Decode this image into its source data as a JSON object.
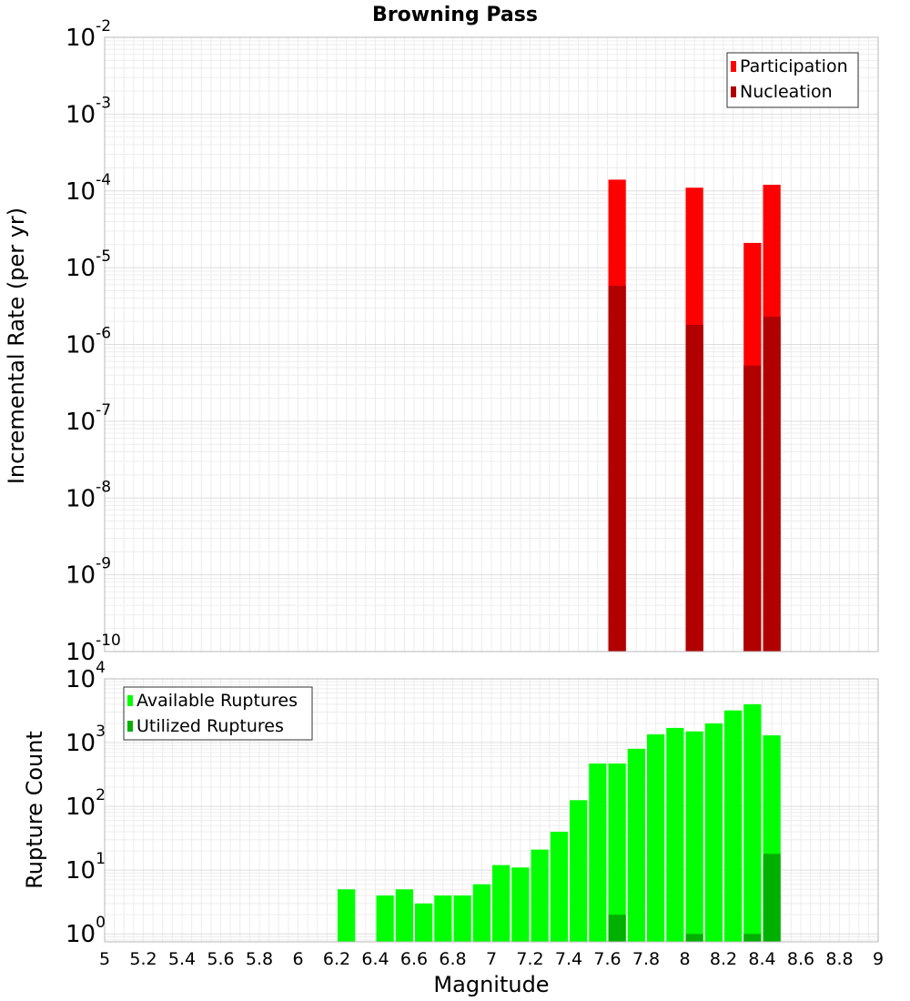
{
  "chart_data": [
    {
      "type": "bar",
      "title": "Browning Pass",
      "ylabel": "Incremental Rate (per yr)",
      "xlabel": "",
      "yscale": "log",
      "ylim": [
        1e-10,
        0.01
      ],
      "xlim": [
        5,
        9
      ],
      "bin_width": 0.1,
      "grid": true,
      "legend": {
        "position": "top-right",
        "entries": [
          "Participation",
          "Nucleation"
        ]
      },
      "ytick_labels": [
        {
          "base": "10",
          "exp": "-10",
          "value": 1e-10
        },
        {
          "base": "10",
          "exp": "-9",
          "value": 1e-09
        },
        {
          "base": "10",
          "exp": "-8",
          "value": 1e-08
        },
        {
          "base": "10",
          "exp": "-7",
          "value": 1e-07
        },
        {
          "base": "10",
          "exp": "-6",
          "value": 1e-06
        },
        {
          "base": "10",
          "exp": "-5",
          "value": 1e-05
        },
        {
          "base": "10",
          "exp": "-4",
          "value": 0.0001
        },
        {
          "base": "10",
          "exp": "-3",
          "value": 0.001
        },
        {
          "base": "10",
          "exp": "-2",
          "value": 0.01
        }
      ],
      "series": [
        {
          "name": "Participation",
          "color": "#ff0000",
          "points": [
            {
              "x": 7.65,
              "y": 0.00014
            },
            {
              "x": 8.05,
              "y": 0.00011
            },
            {
              "x": 8.35,
              "y": 2.1e-05
            },
            {
              "x": 8.45,
              "y": 0.00012
            }
          ]
        },
        {
          "name": "Nucleation",
          "color": "#b00000",
          "points": [
            {
              "x": 7.65,
              "y": 5.8e-06
            },
            {
              "x": 8.05,
              "y": 1.8e-06
            },
            {
              "x": 8.35,
              "y": 5.3e-07
            },
            {
              "x": 8.45,
              "y": 2.3e-06
            }
          ]
        }
      ]
    },
    {
      "type": "bar",
      "title": "",
      "ylabel": "Rupture Count",
      "xlabel": "Magnitude",
      "yscale": "log",
      "ylim": [
        0.75,
        10000
      ],
      "xlim": [
        5,
        9
      ],
      "bin_width": 0.1,
      "grid": true,
      "legend": {
        "position": "top-left",
        "entries": [
          "Available Ruptures",
          "Utilized Ruptures"
        ]
      },
      "ytick_labels": [
        {
          "base": "10",
          "exp": "0",
          "value": 1
        },
        {
          "base": "10",
          "exp": "1",
          "value": 10
        },
        {
          "base": "10",
          "exp": "2",
          "value": 100
        },
        {
          "base": "10",
          "exp": "3",
          "value": 1000
        },
        {
          "base": "10",
          "exp": "4",
          "value": 10000
        }
      ],
      "xtick_labels": [
        "5",
        "5.2",
        "5.4",
        "5.6",
        "5.8",
        "6",
        "6.2",
        "6.4",
        "6.6",
        "6.8",
        "7",
        "7.2",
        "7.4",
        "7.6",
        "7.8",
        "8",
        "8.2",
        "8.4",
        "8.6",
        "8.8",
        "9"
      ],
      "series": [
        {
          "name": "Available Ruptures",
          "color": "#00ff00",
          "points": [
            {
              "x": 6.25,
              "y": 5
            },
            {
              "x": 6.45,
              "y": 4
            },
            {
              "x": 6.55,
              "y": 5
            },
            {
              "x": 6.65,
              "y": 3
            },
            {
              "x": 6.75,
              "y": 4
            },
            {
              "x": 6.85,
              "y": 4
            },
            {
              "x": 6.95,
              "y": 6
            },
            {
              "x": 7.05,
              "y": 12
            },
            {
              "x": 7.15,
              "y": 11
            },
            {
              "x": 7.25,
              "y": 21
            },
            {
              "x": 7.35,
              "y": 40
            },
            {
              "x": 7.45,
              "y": 125
            },
            {
              "x": 7.55,
              "y": 470
            },
            {
              "x": 7.65,
              "y": 470
            },
            {
              "x": 7.75,
              "y": 800
            },
            {
              "x": 7.85,
              "y": 1350
            },
            {
              "x": 7.95,
              "y": 1700
            },
            {
              "x": 8.05,
              "y": 1500
            },
            {
              "x": 8.15,
              "y": 2000
            },
            {
              "x": 8.25,
              "y": 3200
            },
            {
              "x": 8.35,
              "y": 4000
            },
            {
              "x": 8.45,
              "y": 1300
            }
          ]
        },
        {
          "name": "Utilized Ruptures",
          "color": "#00b000",
          "points": [
            {
              "x": 7.65,
              "y": 2
            },
            {
              "x": 8.05,
              "y": 1
            },
            {
              "x": 8.35,
              "y": 1
            },
            {
              "x": 8.45,
              "y": 18
            }
          ]
        }
      ]
    }
  ]
}
